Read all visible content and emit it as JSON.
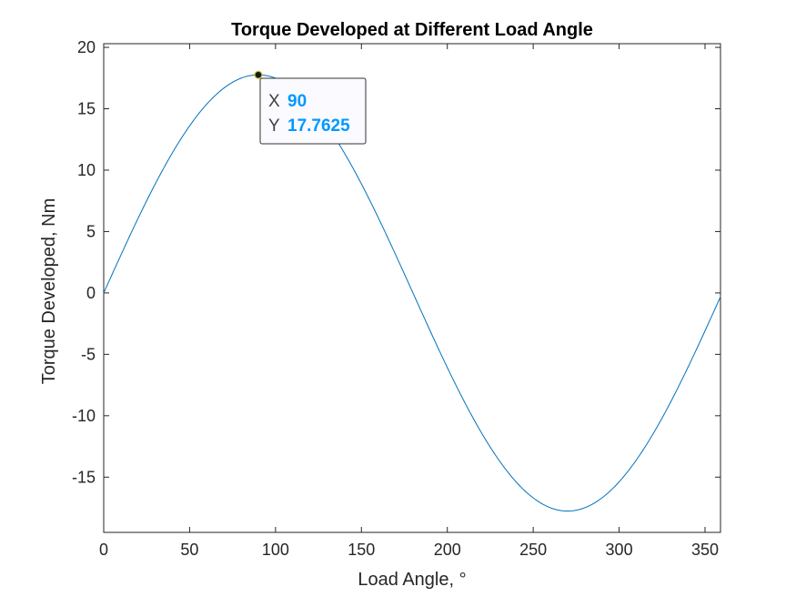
{
  "chart_data": {
    "type": "line",
    "title": "Torque Developed at Different Load Angle",
    "xlabel": "Load Angle, °",
    "ylabel": "Torque Developed, Nm",
    "xlim": [
      0,
      359
    ],
    "ylim": [
      -19.5,
      20.3
    ],
    "xticks": [
      0,
      50,
      100,
      150,
      200,
      250,
      300,
      350
    ],
    "yticks": [
      -15,
      -10,
      -5,
      0,
      5,
      10,
      15,
      20
    ],
    "grid": false,
    "series": [
      {
        "color": "#0072BD",
        "x": [
          0,
          15,
          30,
          45,
          60,
          75,
          90,
          105,
          120,
          135,
          150,
          165,
          180,
          195,
          210,
          225,
          240,
          255,
          270,
          285,
          300,
          315,
          330,
          345,
          359
        ],
        "y": [
          0,
          4.6005,
          8.8813,
          12.5603,
          15.3828,
          17.1697,
          17.7625,
          17.1697,
          15.3828,
          12.5603,
          8.8813,
          4.6005,
          0,
          -4.6005,
          -8.8813,
          -12.5603,
          -15.3828,
          -17.1697,
          -17.7625,
          -17.1697,
          -15.3828,
          -12.5603,
          -8.8813,
          -4.6005,
          -0.31
        ]
      }
    ],
    "datatip": {
      "x_key": "X",
      "x_value": "90",
      "y_key": "Y",
      "y_value": "17.7625",
      "point": [
        90,
        17.7625
      ],
      "value_color": "#0099FF"
    }
  }
}
